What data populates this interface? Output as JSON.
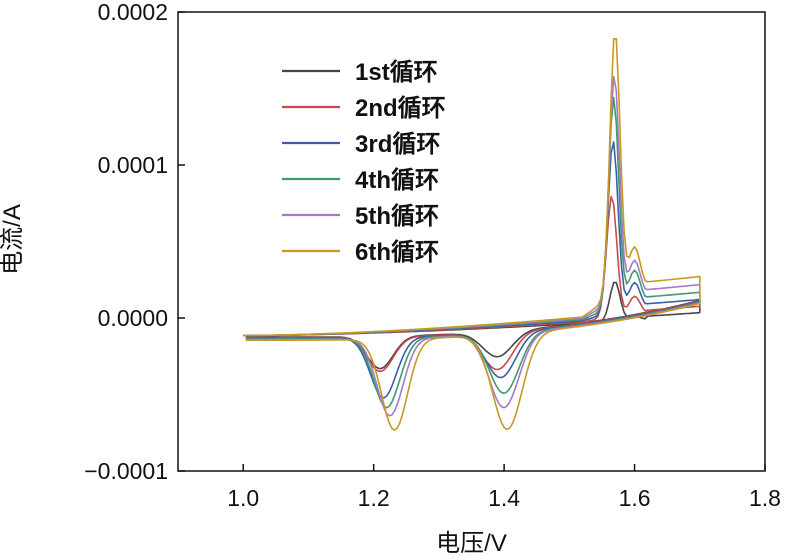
{
  "chart_data": {
    "type": "line",
    "title": "",
    "xlabel": "电压/V",
    "ylabel": "电流/A",
    "xlim": [
      0.9,
      1.8
    ],
    "ylim": [
      -0.0001,
      0.0002
    ],
    "xticks": [
      1.0,
      1.2,
      1.4,
      1.6,
      1.8
    ],
    "xtick_labels": [
      "1.0",
      "1.2",
      "1.4",
      "1.6",
      "1.8"
    ],
    "yticks": [
      -0.0001,
      0.0,
      0.0001,
      0.0002
    ],
    "ytick_labels": [
      "−0.0001",
      "0.0000",
      "0.0001",
      "0.0002"
    ],
    "grid": false,
    "legend_position": "top-left",
    "series": [
      {
        "name": "1st循环",
        "color": "#4a4347",
        "anodic_peak": {
          "x": 1.57,
          "y": 3e-05
        },
        "cathodic_peaks": [
          {
            "x": 1.21,
            "y": -3.36e-05
          },
          {
            "x": 1.39,
            "y": -2.5e-05
          }
        ]
      },
      {
        "name": "2nd循环",
        "color": "#c94a4a",
        "anodic_peak": {
          "x": 1.565,
          "y": 8.6e-05
        },
        "cathodic_peaks": [
          {
            "x": 1.21,
            "y": -3.5e-05
          },
          {
            "x": 1.39,
            "y": -3.3e-05
          }
        ]
      },
      {
        "name": "3rd循环",
        "color": "#3a5fa8",
        "anodic_peak": {
          "x": 1.567,
          "y": 0.000122
        },
        "cathodic_peaks": [
          {
            "x": 1.215,
            "y": -5.2e-05
          },
          {
            "x": 1.395,
            "y": -3.8e-05
          }
        ]
      },
      {
        "name": "4th循环",
        "color": "#3f9a6c",
        "anodic_peak": {
          "x": 1.568,
          "y": 0.00015
        },
        "cathodic_peaks": [
          {
            "x": 1.22,
            "y": -5.8e-05
          },
          {
            "x": 1.4,
            "y": -4.8e-05
          }
        ]
      },
      {
        "name": "5th循环",
        "color": "#a47ac8",
        "anodic_peak": {
          "x": 1.569,
          "y": 0.000165
        },
        "cathodic_peaks": [
          {
            "x": 1.225,
            "y": -6.3e-05
          },
          {
            "x": 1.4,
            "y": -5.7e-05
          }
        ]
      },
      {
        "name": "6th循环",
        "color": "#c79a1e",
        "anodic_peak": {
          "x": 1.57,
          "y": 0.000194
        },
        "cathodic_peaks": [
          {
            "x": 1.232,
            "y": -7.2e-05
          },
          {
            "x": 1.405,
            "y": -7.1e-05
          }
        ]
      }
    ]
  }
}
